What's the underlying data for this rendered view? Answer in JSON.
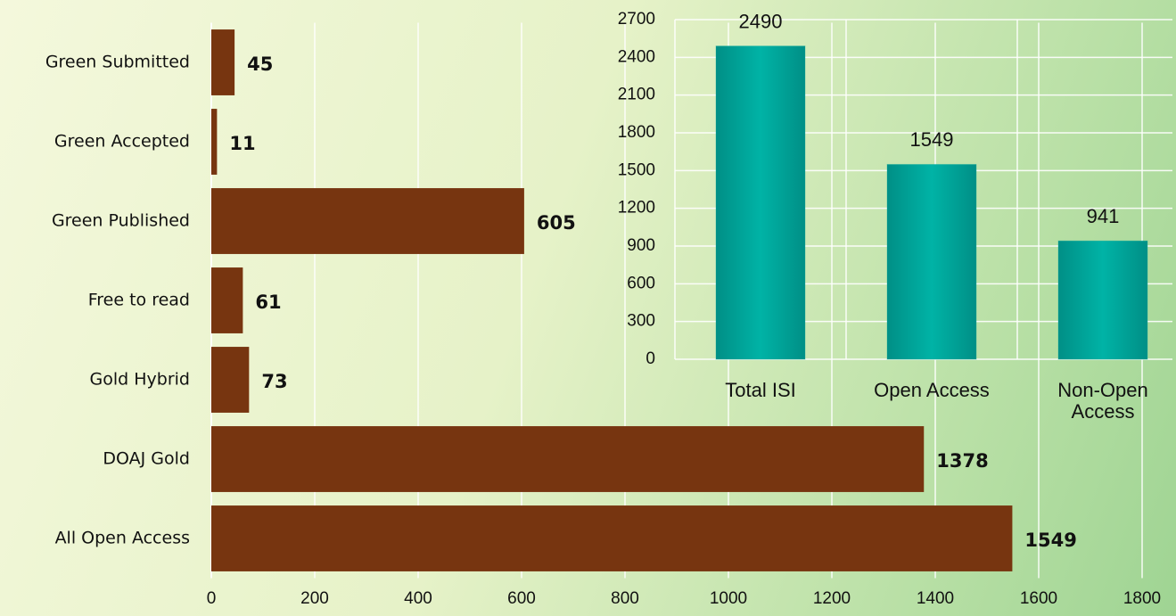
{
  "chart_data": [
    {
      "type": "hbar",
      "categories": [
        "Green Submitted",
        "Green Accepted",
        "Green Published",
        "Free to read",
        "Gold Hybrid",
        "DOAJ Gold",
        "All Open Access"
      ],
      "values": [
        45,
        11,
        605,
        61,
        73,
        1378,
        1549
      ],
      "color": "#773510",
      "xlim": [
        0,
        1800
      ],
      "xticks": [
        0,
        200,
        400,
        600,
        800,
        1000,
        1200,
        1400,
        1600,
        1800
      ],
      "grid": true
    },
    {
      "type": "bar",
      "categories": [
        "Total ISI",
        "Open Access",
        "Non-Open Access"
      ],
      "values": [
        2490,
        1549,
        941
      ],
      "color": "#00a99d",
      "ylim": [
        0,
        2700
      ],
      "yticks": [
        0,
        300,
        600,
        900,
        1200,
        1500,
        1800,
        2100,
        2400,
        2700
      ],
      "grid": true
    }
  ]
}
